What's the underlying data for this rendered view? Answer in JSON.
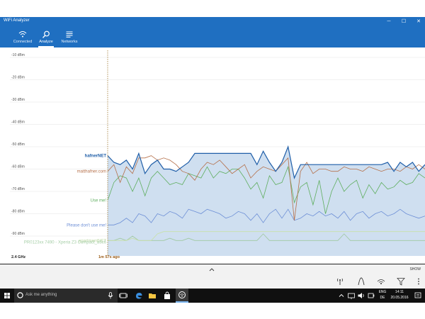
{
  "window": {
    "title": "WiFi Analyzer",
    "minimize": "─",
    "maximize": "☐",
    "close": "✕"
  },
  "nav": {
    "items": [
      {
        "label": "Connected",
        "icon": "wifi-icon"
      },
      {
        "label": "Analyze",
        "icon": "search-icon",
        "active": true
      },
      {
        "label": "Networks",
        "icon": "list-icon"
      }
    ]
  },
  "chart_data": {
    "type": "line",
    "y_unit": "dBm",
    "ylim": [
      -100,
      -10
    ],
    "y_ticks": [
      "-10 dBm",
      "-20 dBm",
      "-30 dBm",
      "-40 dBm",
      "-50 dBm",
      "-60 dBm",
      "-70 dBm",
      "-80 dBm",
      "-90 dBm"
    ],
    "frequency_label": "2.4 GHz",
    "time_marker": "1m 57s ago",
    "series": [
      {
        "name": "hafnerNET",
        "color": "#1f5ea8",
        "filled": true,
        "values": [
          -54,
          -57,
          -58,
          -56,
          -60,
          -53,
          -62,
          -58,
          -56,
          -60,
          -60,
          -61,
          -59,
          -57,
          -53,
          -53,
          -53,
          -53,
          -53,
          -53,
          -53,
          -53,
          -53,
          -53,
          -58,
          -52,
          -57,
          -61,
          -57,
          -50,
          -64,
          -58,
          -58,
          -58,
          -58,
          -58,
          -58,
          -58,
          -58,
          -58,
          -58,
          -58,
          -58,
          -58,
          -58,
          -57,
          -61,
          -57,
          -59,
          -57,
          -61,
          -58
        ]
      },
      {
        "name": "matthafner.com",
        "color": "#b5704a",
        "filled": false,
        "values": [
          -61,
          -58,
          -66,
          -59,
          -62,
          -55,
          -55,
          -54,
          -56,
          -55,
          -56,
          -58,
          -61,
          -62,
          -65,
          -60,
          -57,
          -58,
          -56,
          -59,
          -62,
          -60,
          -58,
          -64,
          -61,
          -59,
          -60,
          -61,
          -58,
          -55,
          -83,
          -61,
          -57,
          -62,
          -60,
          -60,
          -61,
          -61,
          -59,
          -60,
          -60,
          -61,
          -59,
          -60,
          -61,
          -60,
          -60,
          -61,
          -59,
          -60,
          -58,
          -60
        ]
      },
      {
        "name": "Use me!",
        "color": "#5fae5f",
        "filled": false,
        "values": [
          -74,
          -66,
          -63,
          -64,
          -70,
          -64,
          -72,
          -64,
          -61,
          -64,
          -67,
          -66,
          -67,
          -62,
          -63,
          -64,
          -59,
          -64,
          -61,
          -62,
          -60,
          -60,
          -64,
          -69,
          -66,
          -73,
          -63,
          -67,
          -66,
          -59,
          -75,
          -68,
          -66,
          -76,
          -65,
          -80,
          -70,
          -64,
          -70,
          -67,
          -65,
          -73,
          -67,
          -71,
          -66,
          -69,
          -68,
          -65,
          -67,
          -66,
          -62,
          -64
        ]
      },
      {
        "name": "Please don't use me!",
        "color": "#6d8fd6",
        "filled": false,
        "values": [
          -85,
          -85,
          -84,
          -82,
          -84,
          -80,
          -81,
          -84,
          -80,
          -81,
          -79,
          -80,
          -82,
          -78,
          -79,
          -80,
          -78,
          -79,
          -80,
          -82,
          -81,
          -79,
          -80,
          -83,
          -80,
          -84,
          -80,
          -78,
          -82,
          -78,
          -83,
          -82,
          -80,
          -81,
          -79,
          -81,
          -80,
          -82,
          -79,
          -83,
          -80,
          -79,
          -82,
          -80,
          -79,
          -81,
          -80,
          -78,
          -80,
          -81,
          -82,
          -81
        ]
      },
      {
        "name": "apartmentNET",
        "color": "#c8e0a8",
        "filled": false,
        "values": [
          -92,
          -92,
          -92,
          -92,
          -91,
          -92,
          -92,
          -92,
          -89,
          -88,
          -88,
          -88,
          -88,
          -88,
          -88,
          -88,
          -88,
          -88,
          -88,
          -88,
          -88,
          -88,
          -88,
          -88,
          -88,
          -88,
          -88,
          -88,
          -88,
          -88,
          -88,
          -88,
          -88,
          -88,
          -88,
          -88,
          -88,
          -88,
          -88,
          -88,
          -88,
          -88,
          -88,
          -88,
          -88,
          -88,
          -88,
          -88,
          -88,
          -88,
          -88,
          -88
        ]
      },
      {
        "name": "PR0123xx 7490 - Xperia Z3 Compact_a6c6",
        "color": "#9fc8a0",
        "filled": false,
        "values": [
          -92,
          -92,
          -91,
          -92,
          -90,
          -92,
          -92,
          -92,
          -92,
          -92,
          -91,
          -92,
          -92,
          -91,
          -92,
          -92,
          -92,
          -92,
          -92,
          -92,
          -92,
          -92,
          -92,
          -92,
          -92,
          -89,
          -92,
          -92,
          -92,
          -92,
          -92,
          -92,
          -92,
          -92,
          -92,
          -92,
          -92,
          -92,
          -89,
          -92,
          -92,
          -92,
          -92,
          -92,
          -92,
          -92,
          -92,
          -92,
          -92,
          -92,
          -92,
          -92
        ]
      }
    ]
  },
  "expander": {
    "chevron": "chevron-up-icon",
    "show_label": "SHOW"
  },
  "commands": [
    "antenna-icon",
    "channel-icon",
    "signal-icon",
    "filter-icon",
    "more-icon"
  ],
  "taskbar": {
    "search_placeholder": "Ask me anything",
    "language": "ENG",
    "locale": "DE",
    "time": "14:11",
    "date": "20.05.2016"
  }
}
